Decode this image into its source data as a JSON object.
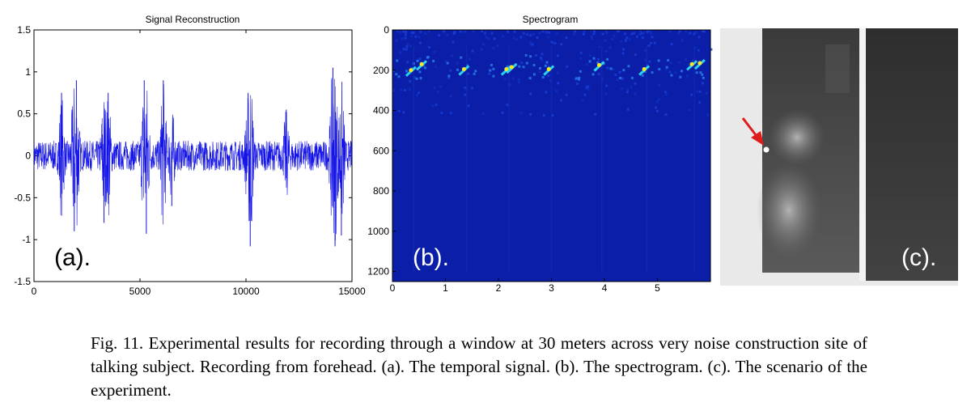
{
  "figure": {
    "panel_a_label": "(a).",
    "panel_b_label": "(b).",
    "panel_c_label": "(c).",
    "caption": "Fig. 11. Experimental results for recording through a window at 30 meters across very noise construction site of talking subject. Recording from forehead. (a). The temporal signal. (b). The spectrogram. (c). The scenario of the experiment."
  },
  "chart_data": [
    {
      "type": "line",
      "title": "Signal Reconstruction",
      "xlabel": "",
      "ylabel": "",
      "xlim": [
        0,
        15000
      ],
      "ylim": [
        -1.5,
        1.5
      ],
      "xticks": [
        0,
        5000,
        10000,
        15000
      ],
      "yticks": [
        -1.5,
        -1,
        -0.5,
        0,
        0.5,
        1,
        1.5
      ],
      "xtick_labels": [
        "0",
        "5000",
        "10000",
        "15000"
      ],
      "ytick_labels": [
        "-1.5",
        "-1",
        "-0.5",
        "0",
        "0.5",
        "1",
        "1.5"
      ],
      "color": "#1414e6",
      "peaks": [
        {
          "x": 1300,
          "y": 0.75
        },
        {
          "x": 1900,
          "y": -0.9
        },
        {
          "x": 2000,
          "y": 0.9
        },
        {
          "x": 3300,
          "y": -0.8
        },
        {
          "x": 3500,
          "y": 0.75
        },
        {
          "x": 5200,
          "y": 0.9
        },
        {
          "x": 5300,
          "y": -0.93
        },
        {
          "x": 6100,
          "y": 0.9
        },
        {
          "x": 6500,
          "y": -0.6
        },
        {
          "x": 10100,
          "y": 0.75
        },
        {
          "x": 10200,
          "y": -1.08
        },
        {
          "x": 11900,
          "y": 0.55
        },
        {
          "x": 14100,
          "y": 1.05
        },
        {
          "x": 14200,
          "y": -1.08
        },
        {
          "x": 14500,
          "y": -0.95
        }
      ]
    },
    {
      "type": "heatmap",
      "title": "Spectrogram",
      "xlabel": "",
      "ylabel": "",
      "xlim": [
        0,
        6
      ],
      "ylim": [
        1250,
        0
      ],
      "xticks": [
        0,
        1,
        2,
        3,
        4,
        5
      ],
      "yticks": [
        0,
        200,
        400,
        600,
        800,
        1000,
        1200
      ],
      "xtick_labels": [
        "0",
        "1",
        "2",
        "3",
        "4",
        "5"
      ],
      "ytick_labels": [
        "0",
        "200",
        "400",
        "600",
        "800",
        "1000",
        "1200"
      ],
      "background_color": "#0a1ea8",
      "hotspots": [
        {
          "x": 0.35,
          "y": 200
        },
        {
          "x": 0.55,
          "y": 170
        },
        {
          "x": 1.35,
          "y": 195
        },
        {
          "x": 2.15,
          "y": 195
        },
        {
          "x": 2.25,
          "y": 185
        },
        {
          "x": 2.95,
          "y": 195
        },
        {
          "x": 3.9,
          "y": 175
        },
        {
          "x": 4.75,
          "y": 195
        },
        {
          "x": 5.65,
          "y": 170
        },
        {
          "x": 5.8,
          "y": 165
        }
      ]
    }
  ]
}
